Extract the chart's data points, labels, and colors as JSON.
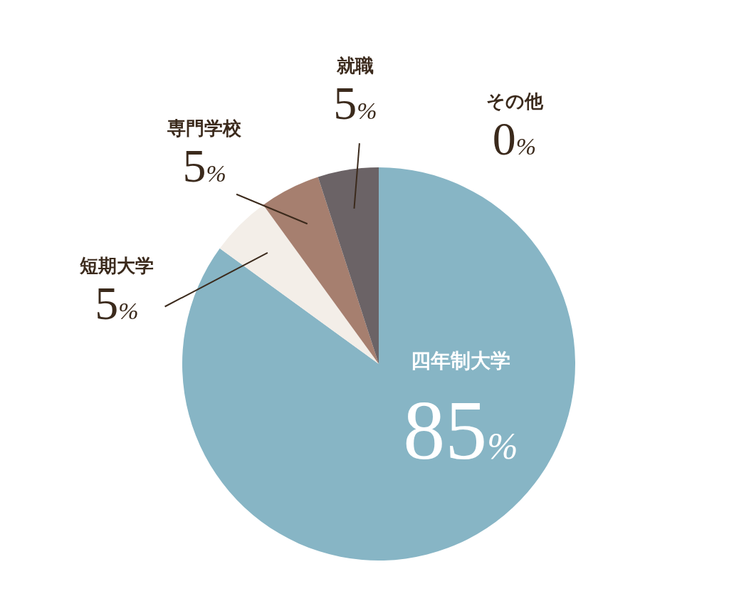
{
  "chart_data": {
    "type": "pie",
    "categories": [
      "四年制大学",
      "短期大学",
      "専門学校",
      "就職",
      "その他"
    ],
    "values": [
      85,
      5,
      5,
      5,
      0
    ],
    "value_labels": [
      "85%",
      "5%",
      "5%",
      "5%",
      "0%"
    ],
    "colors": [
      "#87b5c5",
      "#f3eee8",
      "#a67f6f",
      "#6b6366",
      "#c8c8c8"
    ]
  }
}
